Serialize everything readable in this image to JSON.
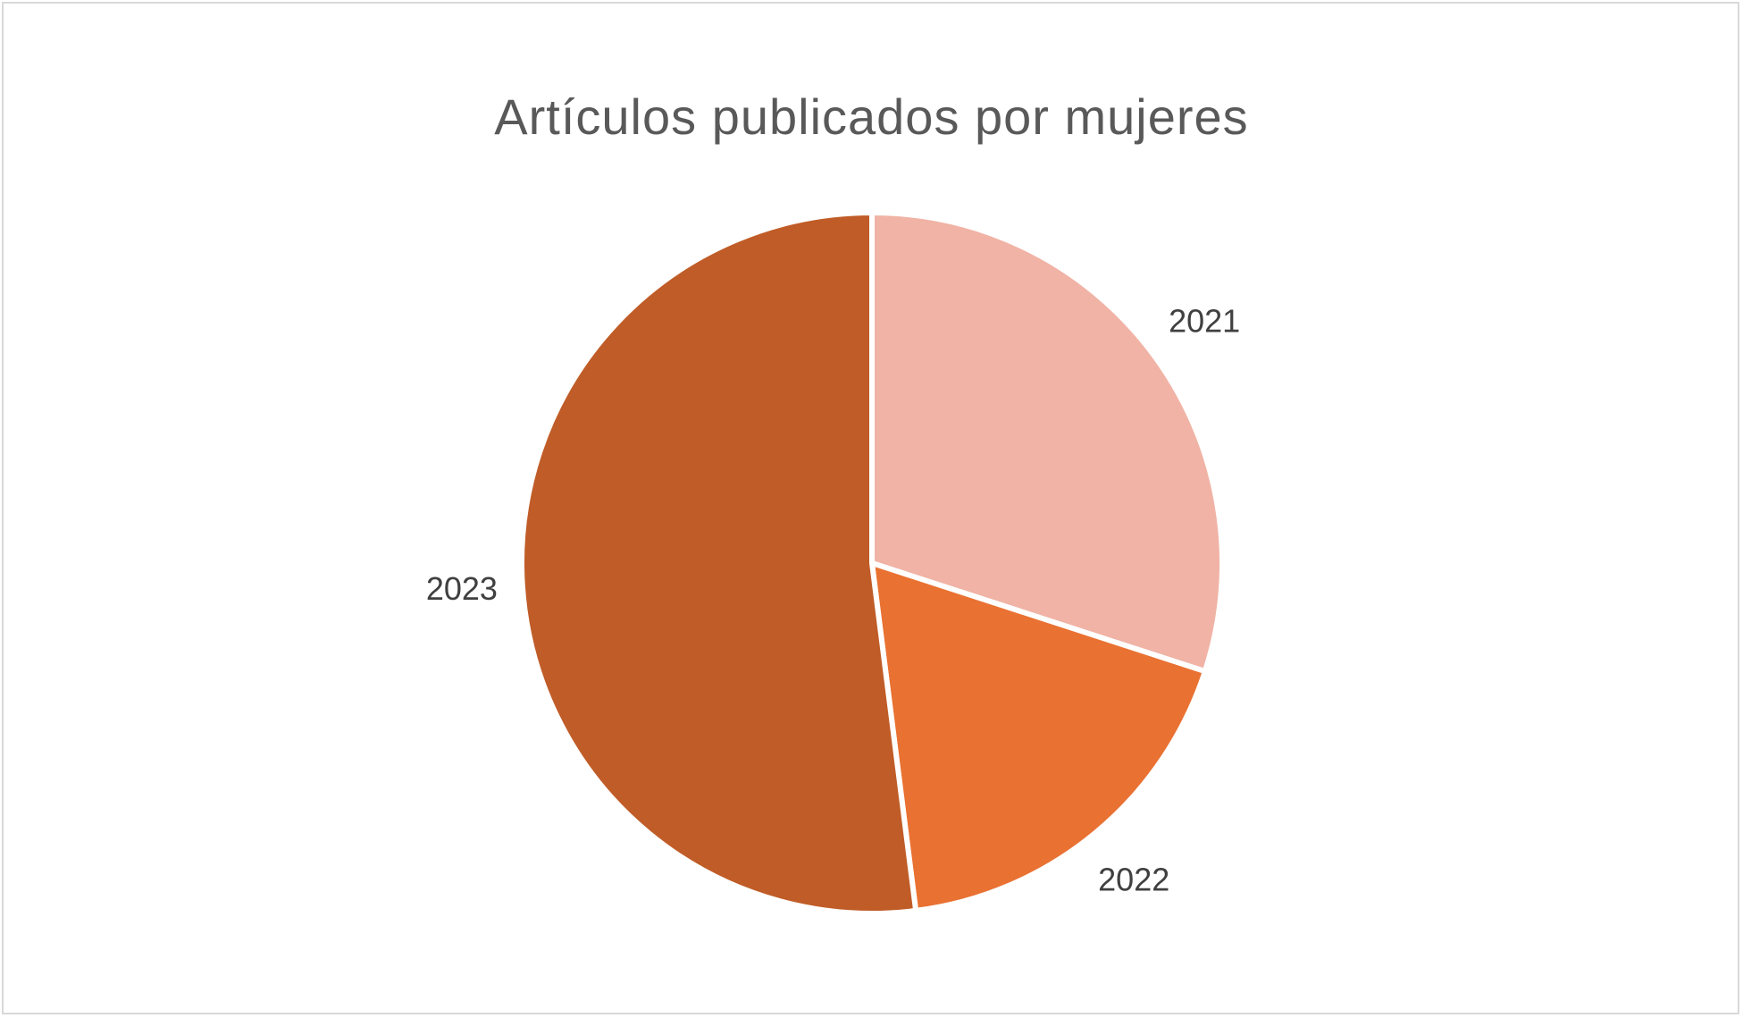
{
  "chart_data": {
    "type": "pie",
    "title": "Artículos publicados por mujeres",
    "categories": [
      "2021",
      "2022",
      "2023"
    ],
    "values": [
      30,
      18,
      52
    ],
    "colors": [
      "#F0B3A5",
      "#E97132",
      "#C05C27"
    ],
    "legend": "none",
    "data_labels": "category name outside slices"
  }
}
